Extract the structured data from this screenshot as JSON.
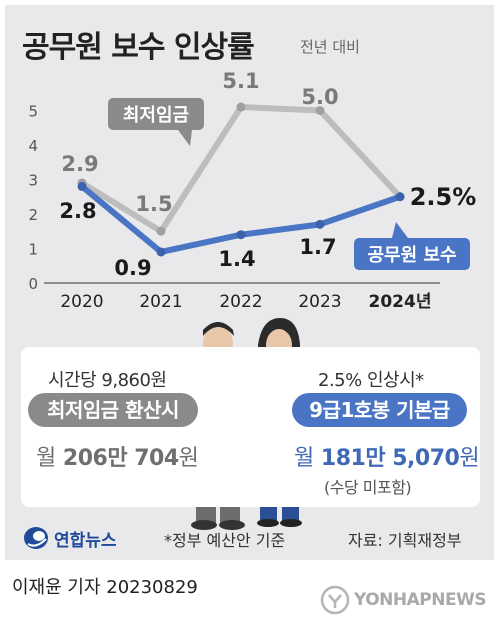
{
  "header": {
    "title": "공무원 보수 인상률",
    "subtitle": "전년 대비"
  },
  "chart_data": {
    "type": "line",
    "title": "공무원 보수 인상률",
    "subtitle": "전년 대비",
    "categories": [
      "2020",
      "2021",
      "2022",
      "2023",
      "2024년"
    ],
    "y_ticks": [
      "0",
      "1",
      "2",
      "3",
      "4",
      "5"
    ],
    "ylim": [
      0,
      5.5
    ],
    "grid": false,
    "series": [
      {
        "name": "최저임금",
        "color": "#bdbdbd",
        "label_color": "#7a7a7a",
        "values": [
          2.9,
          1.5,
          5.1,
          5.0,
          2.5
        ],
        "labels": [
          "2.9",
          "1.5",
          "5.1",
          "5.0",
          ""
        ]
      },
      {
        "name": "공무원 보수",
        "color": "#4a75c4",
        "label_color": "#1a1a1a",
        "values": [
          2.8,
          0.9,
          1.4,
          1.7,
          2.5
        ],
        "labels": [
          "2.8",
          "0.9",
          "1.4",
          "1.7",
          "2.5%"
        ]
      }
    ]
  },
  "comparison": {
    "min_wage": {
      "prefix": "시간당 9,860원",
      "label": "최저임금 환산시",
      "amount_prefix": "월",
      "amount": "206만 704",
      "amount_unit": "원"
    },
    "civil": {
      "prefix": "2.5% 인상시*",
      "label": "9급1호봉 기본급",
      "amount_prefix": "월",
      "amount": "181만 5,070",
      "amount_unit": "원",
      "note": "(수당 미포함)"
    }
  },
  "footer": {
    "logo": "연합뉴스",
    "note": "*정부 예산안 기준",
    "source": "자료: 기획재정부",
    "byline": "이재윤 기자  20230829",
    "watermark": "YONHAPNEWS"
  },
  "colors": {
    "background": "#e9e9eb",
    "gray_series": "#bdbdbd",
    "blue_series": "#4a75c4",
    "gray_pill": "#8a8a8a"
  }
}
